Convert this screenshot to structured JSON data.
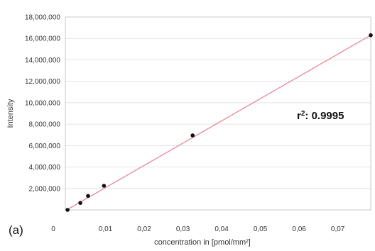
{
  "chart_data": {
    "type": "scatter",
    "panel_label": "(a)",
    "xlabel": "concentration in [pmol/mm²]",
    "ylabel": "Intensity",
    "annotation": {
      "prefix": "r",
      "superscript": "2",
      "text": ": 0.9995"
    },
    "xlim": [
      0,
      0.0785
    ],
    "ylim": [
      0,
      18000000
    ],
    "x_ticks": [
      {
        "value": 0,
        "label": "0"
      },
      {
        "value": 0.01,
        "label": "0,01"
      },
      {
        "value": 0.02,
        "label": "0,02"
      },
      {
        "value": 0.03,
        "label": "0,03"
      },
      {
        "value": 0.04,
        "label": "0,04"
      },
      {
        "value": 0.05,
        "label": "0,05"
      },
      {
        "value": 0.06,
        "label": "0,06"
      },
      {
        "value": 0.07,
        "label": "0,07"
      }
    ],
    "y_ticks": [
      {
        "value": 2000000,
        "label": "2,000,000"
      },
      {
        "value": 4000000,
        "label": "4,000,000"
      },
      {
        "value": 6000000,
        "label": "6,000,000"
      },
      {
        "value": 8000000,
        "label": "8,000,000"
      },
      {
        "value": 10000000,
        "label": "10,000,000"
      },
      {
        "value": 12000000,
        "label": "12,000,000"
      },
      {
        "value": 14000000,
        "label": "14,000,000"
      },
      {
        "value": 16000000,
        "label": "16,000,000"
      },
      {
        "value": 18000000,
        "label": "18,000,000"
      }
    ],
    "points": [
      {
        "x": 0.0002,
        "y": 0
      },
      {
        "x": 0.0035,
        "y": 650000
      },
      {
        "x": 0.0055,
        "y": 1300000
      },
      {
        "x": 0.0096,
        "y": 2250000
      },
      {
        "x": 0.0325,
        "y": 6950000
      },
      {
        "x": 0.0785,
        "y": 16300000
      }
    ],
    "fit_line": {
      "x": [
        0,
        0.0785
      ],
      "y": [
        0,
        16300000
      ]
    },
    "grid": true,
    "colors": {
      "grid": "#e3e3e3",
      "plot_border": "#c8c8c8",
      "fit_line": "#e58a9a",
      "points": "#111111"
    }
  }
}
